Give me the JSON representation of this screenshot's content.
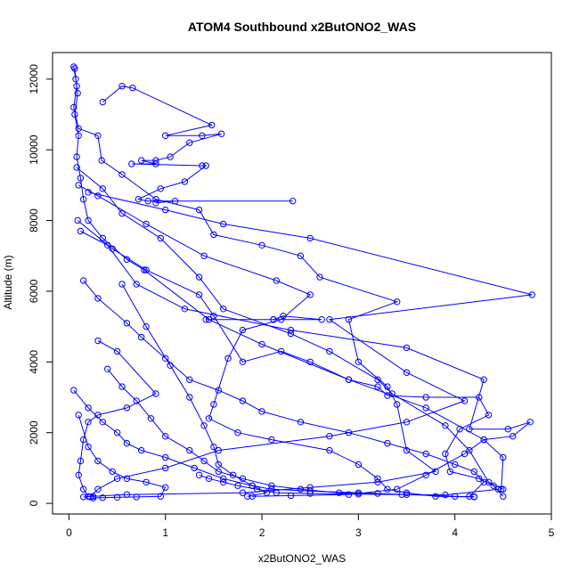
{
  "chart_data": {
    "type": "line",
    "title": "ATOM4 Southbound x2ButONO2_WAS",
    "xlabel": "x2ButONO2_WAS",
    "ylabel": "Altitude (m)",
    "xlim": [
      -0.17,
      5.0
    ],
    "ylim": [
      -300,
      12750
    ],
    "xticks": [
      0,
      1,
      2,
      3,
      4,
      5
    ],
    "yticks": [
      0,
      2000,
      4000,
      6000,
      8000,
      10000,
      12000
    ],
    "grid": false,
    "legend": "none",
    "series": [
      {
        "color": "#0000ff",
        "marker": "open-circle",
        "segments": [
          [
            [
              0.05,
              12350
            ],
            [
              0.07,
              12000
            ],
            [
              0.09,
              11600
            ],
            [
              0.06,
              11000
            ],
            [
              0.1,
              10400
            ],
            [
              0.08,
              9800
            ],
            [
              0.12,
              9200
            ],
            [
              0.15,
              8600
            ],
            [
              0.2,
              8000
            ],
            [
              0.35,
              7500
            ],
            [
              0.6,
              6900
            ],
            [
              0.78,
              6600
            ],
            [
              1.45,
              5200
            ],
            [
              2.0,
              4500
            ],
            [
              2.9,
              3500
            ],
            [
              3.7,
              2700
            ],
            [
              4.3,
              1800
            ],
            [
              4.5,
              1300
            ],
            [
              4.48,
              400
            ]
          ],
          [
            [
              0.06,
              12300
            ],
            [
              0.08,
              11800
            ],
            [
              0.05,
              11200
            ],
            [
              0.1,
              10600
            ],
            [
              0.3,
              10400
            ],
            [
              0.34,
              9700
            ],
            [
              0.55,
              9300
            ],
            [
              0.9,
              8600
            ],
            [
              1.35,
              8300
            ],
            [
              1.5,
              7600
            ],
            [
              2.0,
              7300
            ],
            [
              2.4,
              7000
            ],
            [
              2.6,
              6400
            ],
            [
              3.4,
              5700
            ],
            [
              2.9,
              5200
            ],
            [
              3.0,
              4000
            ],
            [
              3.3,
              3300
            ],
            [
              3.4,
              2800
            ],
            [
              3.5,
              1500
            ],
            [
              3.8,
              900
            ],
            [
              3.2,
              600
            ],
            [
              2.5,
              450
            ],
            [
              1.8,
              300
            ],
            [
              0.6,
              250
            ],
            [
              0.25,
              200
            ],
            [
              0.15,
              180
            ]
          ],
          [
            [
              0.35,
              11350
            ],
            [
              0.55,
              11800
            ],
            [
              0.66,
              11750
            ],
            [
              1.48,
              10700
            ],
            [
              1.0,
              10400
            ],
            [
              1.38,
              10400
            ],
            [
              1.58,
              10450
            ],
            [
              1.25,
              10200
            ],
            [
              1.05,
              9800
            ],
            [
              0.9,
              9700
            ],
            [
              0.75,
              9700
            ],
            [
              0.9,
              9600
            ],
            [
              0.65,
              9600
            ],
            [
              1.38,
              9550
            ],
            [
              1.42,
              9550
            ],
            [
              1.2,
              9100
            ],
            [
              0.95,
              8900
            ],
            [
              0.72,
              8600
            ],
            [
              0.82,
              8550
            ],
            [
              2.32,
              8550
            ],
            [
              1.1,
              8550
            ],
            [
              0.9,
              8500
            ]
          ],
          [
            [
              0.2,
              8800
            ],
            [
              1.0,
              8300
            ],
            [
              1.6,
              7900
            ],
            [
              2.5,
              7500
            ],
            [
              4.8,
              5900
            ],
            [
              2.7,
              5200
            ],
            [
              3.5,
              3700
            ],
            [
              4.1,
              2900
            ],
            [
              3.5,
              2300
            ],
            [
              2.7,
              1900
            ],
            [
              1.55,
              1500
            ],
            [
              1.0,
              1000
            ],
            [
              0.5,
              700
            ],
            [
              0.3,
              400
            ],
            [
              0.22,
              180
            ]
          ],
          [
            [
              0.12,
              7700
            ],
            [
              0.4,
              7300
            ],
            [
              0.7,
              6200
            ],
            [
              1.2,
              5500
            ],
            [
              2.3,
              4900
            ],
            [
              3.5,
              4400
            ],
            [
              4.3,
              3500
            ],
            [
              4.15,
              2100
            ],
            [
              4.55,
              2100
            ],
            [
              4.78,
              2300
            ],
            [
              4.6,
              1900
            ],
            [
              4.3,
              1800
            ],
            [
              4.1,
              1400
            ],
            [
              3.7,
              800
            ],
            [
              3.4,
              400
            ],
            [
              2.9,
              250
            ],
            [
              2.3,
              220
            ],
            [
              1.9,
              200
            ]
          ],
          [
            [
              0.1,
              9000
            ],
            [
              0.3,
              8700
            ],
            [
              0.8,
              7900
            ],
            [
              1.4,
              7000
            ],
            [
              2.15,
              6300
            ],
            [
              2.5,
              5900
            ],
            [
              2.2,
              5200
            ],
            [
              1.8,
              4900
            ],
            [
              1.65,
              4100
            ],
            [
              1.5,
              2800
            ],
            [
              1.45,
              2400
            ],
            [
              1.75,
              2000
            ],
            [
              2.1,
              1800
            ],
            [
              2.7,
              1500
            ],
            [
              3.0,
              1100
            ],
            [
              3.2,
              700
            ],
            [
              3.3,
              400
            ],
            [
              3.5,
              300
            ],
            [
              3.8,
              200
            ],
            [
              4.2,
              180
            ]
          ],
          [
            [
              0.08,
              9500
            ],
            [
              0.35,
              8900
            ],
            [
              0.55,
              8200
            ],
            [
              0.95,
              7500
            ],
            [
              1.35,
              6400
            ],
            [
              1.6,
              5500
            ],
            [
              2.3,
              4800
            ],
            [
              2.7,
              4300
            ],
            [
              3.2,
              3500
            ],
            [
              3.35,
              3100
            ],
            [
              3.9,
              2200
            ],
            [
              4.15,
              1500
            ],
            [
              4.35,
              600
            ],
            [
              4.5,
              400
            ]
          ],
          [
            [
              0.09,
              8000
            ],
            [
              0.45,
              7200
            ],
            [
              0.8,
              6600
            ],
            [
              1.35,
              5900
            ],
            [
              1.5,
              5300
            ],
            [
              1.8,
              4000
            ],
            [
              2.2,
              4300
            ],
            [
              2.5,
              4000
            ],
            [
              2.9,
              3500
            ],
            [
              3.2,
              3300
            ],
            [
              3.3,
              3050
            ],
            [
              3.7,
              3000
            ],
            [
              4.25,
              3000
            ],
            [
              4.35,
              2500
            ],
            [
              4.05,
              2100
            ],
            [
              3.9,
              1400
            ],
            [
              3.95,
              900
            ],
            [
              4.25,
              700
            ],
            [
              4.4,
              500
            ],
            [
              4.5,
              200
            ]
          ],
          [
            [
              0.15,
              6300
            ],
            [
              0.3,
              5800
            ],
            [
              0.6,
              5100
            ],
            [
              0.75,
              4700
            ],
            [
              1.0,
              4100
            ],
            [
              1.25,
              3500
            ],
            [
              1.55,
              3200
            ],
            [
              1.8,
              2900
            ],
            [
              2.0,
              2600
            ],
            [
              2.4,
              2300
            ],
            [
              2.9,
              2000
            ],
            [
              3.3,
              1700
            ],
            [
              3.7,
              1400
            ],
            [
              4.0,
              1100
            ],
            [
              4.2,
              900
            ],
            [
              4.3,
              600
            ],
            [
              4.15,
              200
            ]
          ],
          [
            [
              0.05,
              3200
            ],
            [
              0.2,
              2700
            ],
            [
              0.35,
              2300
            ],
            [
              0.5,
              2000
            ],
            [
              0.6,
              1700
            ],
            [
              0.75,
              1500
            ],
            [
              1.0,
              1300
            ],
            [
              1.3,
              1000
            ],
            [
              1.6,
              700
            ],
            [
              1.9,
              500
            ],
            [
              2.1,
              400
            ],
            [
              2.5,
              350
            ],
            [
              3.0,
              300
            ],
            [
              3.5,
              250
            ],
            [
              4.0,
              200
            ],
            [
              4.2,
              190
            ]
          ],
          [
            [
              0.1,
              2500
            ],
            [
              0.2,
              1600
            ],
            [
              0.3,
              1200
            ],
            [
              0.45,
              900
            ],
            [
              0.6,
              700
            ],
            [
              0.8,
              600
            ],
            [
              1.0,
              450
            ],
            [
              0.95,
              200
            ],
            [
              0.7,
              180
            ],
            [
              0.5,
              170
            ],
            [
              0.35,
              160
            ],
            [
              0.25,
              150
            ]
          ],
          [
            [
              0.3,
              4600
            ],
            [
              0.5,
              4300
            ],
            [
              0.9,
              3100
            ],
            [
              0.6,
              2700
            ],
            [
              0.3,
              2500
            ],
            [
              0.2,
              2300
            ],
            [
              0.15,
              1800
            ],
            [
              0.12,
              1200
            ],
            [
              0.1,
              800
            ],
            [
              0.15,
              400
            ],
            [
              0.2,
              200
            ]
          ],
          [
            [
              1.42,
              5200
            ],
            [
              2.12,
              5200
            ],
            [
              2.22,
              5300
            ],
            [
              2.62,
              5200
            ],
            [
              2.12,
              5200
            ]
          ],
          [
            [
              1.35,
              800
            ],
            [
              1.45,
              700
            ],
            [
              1.6,
              600
            ],
            [
              1.75,
              500
            ],
            [
              1.95,
              400
            ],
            [
              2.15,
              300
            ],
            [
              2.5,
              280
            ],
            [
              3.0,
              260
            ],
            [
              3.45,
              250
            ],
            [
              3.9,
              240
            ],
            [
              4.45,
              400
            ]
          ],
          [
            [
              0.4,
              3800
            ],
            [
              0.55,
              3300
            ],
            [
              0.7,
              2900
            ],
            [
              0.85,
              2400
            ],
            [
              1.0,
              1900
            ],
            [
              1.25,
              1500
            ],
            [
              1.4,
              1200
            ],
            [
              1.55,
              900
            ],
            [
              1.8,
              700
            ],
            [
              2.1,
              500
            ],
            [
              2.4,
              400
            ],
            [
              2.8,
              300
            ],
            [
              3.2,
              280
            ]
          ],
          [
            [
              0.55,
              6200
            ],
            [
              0.8,
              5000
            ],
            [
              1.05,
              3900
            ],
            [
              1.25,
              3000
            ],
            [
              1.4,
              2200
            ],
            [
              1.5,
              1600
            ],
            [
              1.55,
              1100
            ],
            [
              1.7,
              800
            ],
            [
              1.9,
              500
            ],
            [
              2.05,
              300
            ],
            [
              1.85,
              200
            ]
          ]
        ]
      }
    ]
  }
}
